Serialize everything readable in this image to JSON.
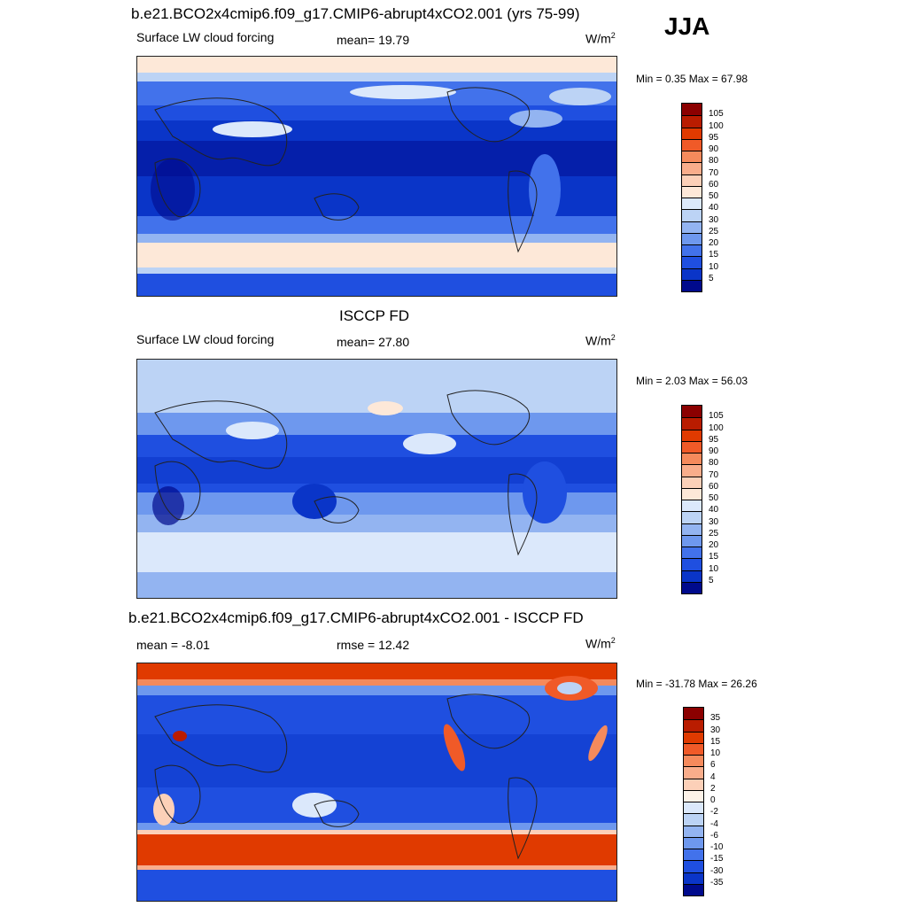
{
  "season": "JJA",
  "panels": [
    {
      "title": "b.e21.BCO2x4cmip6.f09_g17.CMIP6-abrupt4xCO2.001 (yrs 75-99)",
      "left_text": "Surface LW cloud forcing",
      "mid_text": "mean=  19.79",
      "units": "W/m",
      "units_sup": "2",
      "minmax": "Min =   0.35 Max =  67.98",
      "levels": [
        "105",
        "100",
        "95",
        "90",
        "80",
        "70",
        "60",
        "50",
        "40",
        "30",
        "25",
        "20",
        "15",
        "10",
        "5"
      ],
      "colors": [
        "#8b0000",
        "#b91c00",
        "#e03a00",
        "#f05a28",
        "#f58a5c",
        "#f9ad8b",
        "#fcd0b8",
        "#fde8d8",
        "#dbe8fb",
        "#bcd3f5",
        "#93b4f1",
        "#6e98ee",
        "#4272eb",
        "#1f4fe0",
        "#0a35c8",
        "#000a8c"
      ]
    },
    {
      "title": "ISCCP FD",
      "left_text": "Surface LW cloud forcing",
      "mid_text": "mean=  27.80",
      "units": "W/m",
      "units_sup": "2",
      "minmax": "Min =   2.03 Max =  56.03",
      "levels": [
        "105",
        "100",
        "95",
        "90",
        "80",
        "70",
        "60",
        "50",
        "40",
        "30",
        "25",
        "20",
        "15",
        "10",
        "5"
      ],
      "colors": [
        "#8b0000",
        "#b91c00",
        "#e03a00",
        "#f05a28",
        "#f58a5c",
        "#f9ad8b",
        "#fcd0b8",
        "#fde8d8",
        "#dbe8fb",
        "#bcd3f5",
        "#93b4f1",
        "#6e98ee",
        "#4272eb",
        "#1f4fe0",
        "#0a35c8",
        "#000a8c"
      ]
    },
    {
      "title": "b.e21.BCO2x4cmip6.f09_g17.CMIP6-abrupt4xCO2.001 - ISCCP FD",
      "left_text": "mean =  -8.01",
      "mid_text": "rmse =  12.42",
      "units": "W/m",
      "units_sup": "2",
      "minmax": "Min = -31.78 Max =  26.26",
      "levels": [
        "35",
        "30",
        "15",
        "10",
        "6",
        "4",
        "2",
        "0",
        "-2",
        "-4",
        "-6",
        "-10",
        "-15",
        "-30",
        "-35"
      ],
      "colors": [
        "#8b0000",
        "#b91c00",
        "#e03a00",
        "#f05a28",
        "#f58a5c",
        "#f9ad8b",
        "#fcd0b8",
        "#fdf2e8",
        "#dbe8fb",
        "#bcd3f5",
        "#93b4f1",
        "#6e98ee",
        "#4272eb",
        "#1f4fe0",
        "#0a35c8",
        "#000a8c"
      ]
    }
  ]
}
